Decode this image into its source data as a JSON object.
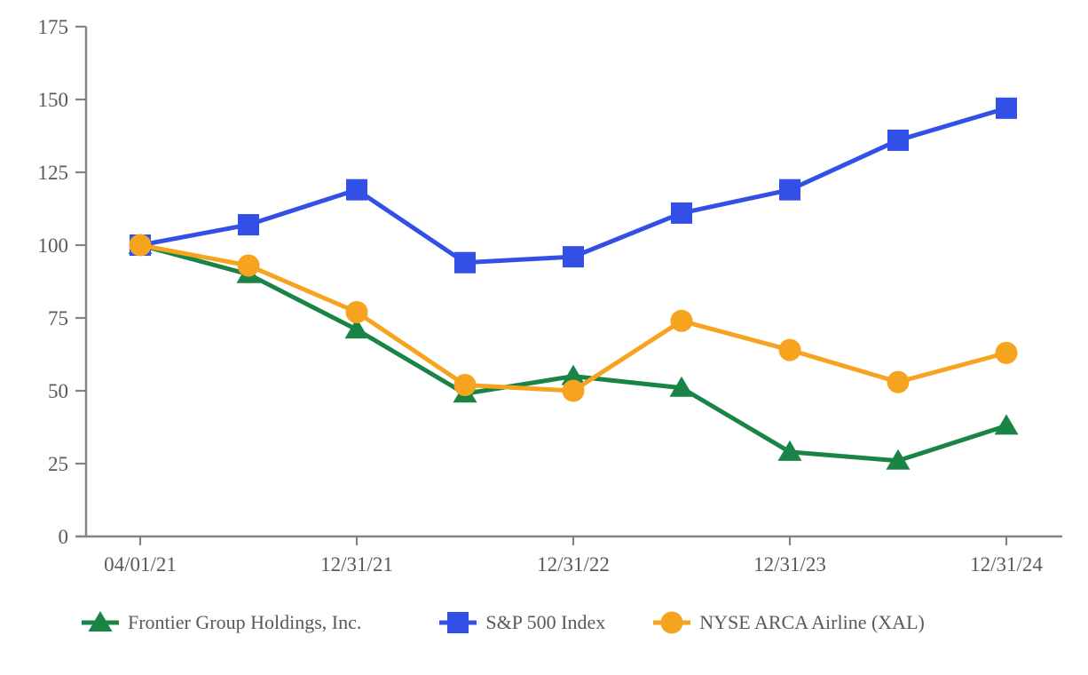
{
  "chart_data": {
    "type": "line",
    "title": "",
    "x_tick_labels": [
      "04/01/21",
      "12/31/21",
      "12/31/22",
      "12/31/23",
      "12/31/24"
    ],
    "x_tick_indices": [
      0,
      2,
      4,
      6,
      8
    ],
    "num_points": 9,
    "point_frequency": "semi-annual",
    "y_ticks": [
      0,
      25,
      50,
      75,
      100,
      125,
      150,
      175
    ],
    "ylim": [
      0,
      175
    ],
    "grid": false,
    "legend_position": "bottom",
    "series": [
      {
        "name": "Frontier Group Holdings, Inc.",
        "marker": "triangle",
        "color": "#1A8447",
        "values": [
          100,
          90,
          71,
          49,
          55,
          51,
          29,
          26,
          38
        ]
      },
      {
        "name": "S&P 500 Index",
        "marker": "square",
        "color": "#3350E6",
        "values": [
          100,
          107,
          119,
          94,
          96,
          111,
          119,
          136,
          147
        ]
      },
      {
        "name": "NYSE ARCA Airline (XAL)",
        "marker": "circle",
        "color": "#F6A41F",
        "values": [
          100,
          93,
          77,
          52,
          50,
          74,
          64,
          53,
          63
        ]
      }
    ]
  },
  "colors": {
    "axis": "#848484",
    "tick_label": "#595959",
    "legend_label": "#595959",
    "background": "#FFFFFF"
  }
}
